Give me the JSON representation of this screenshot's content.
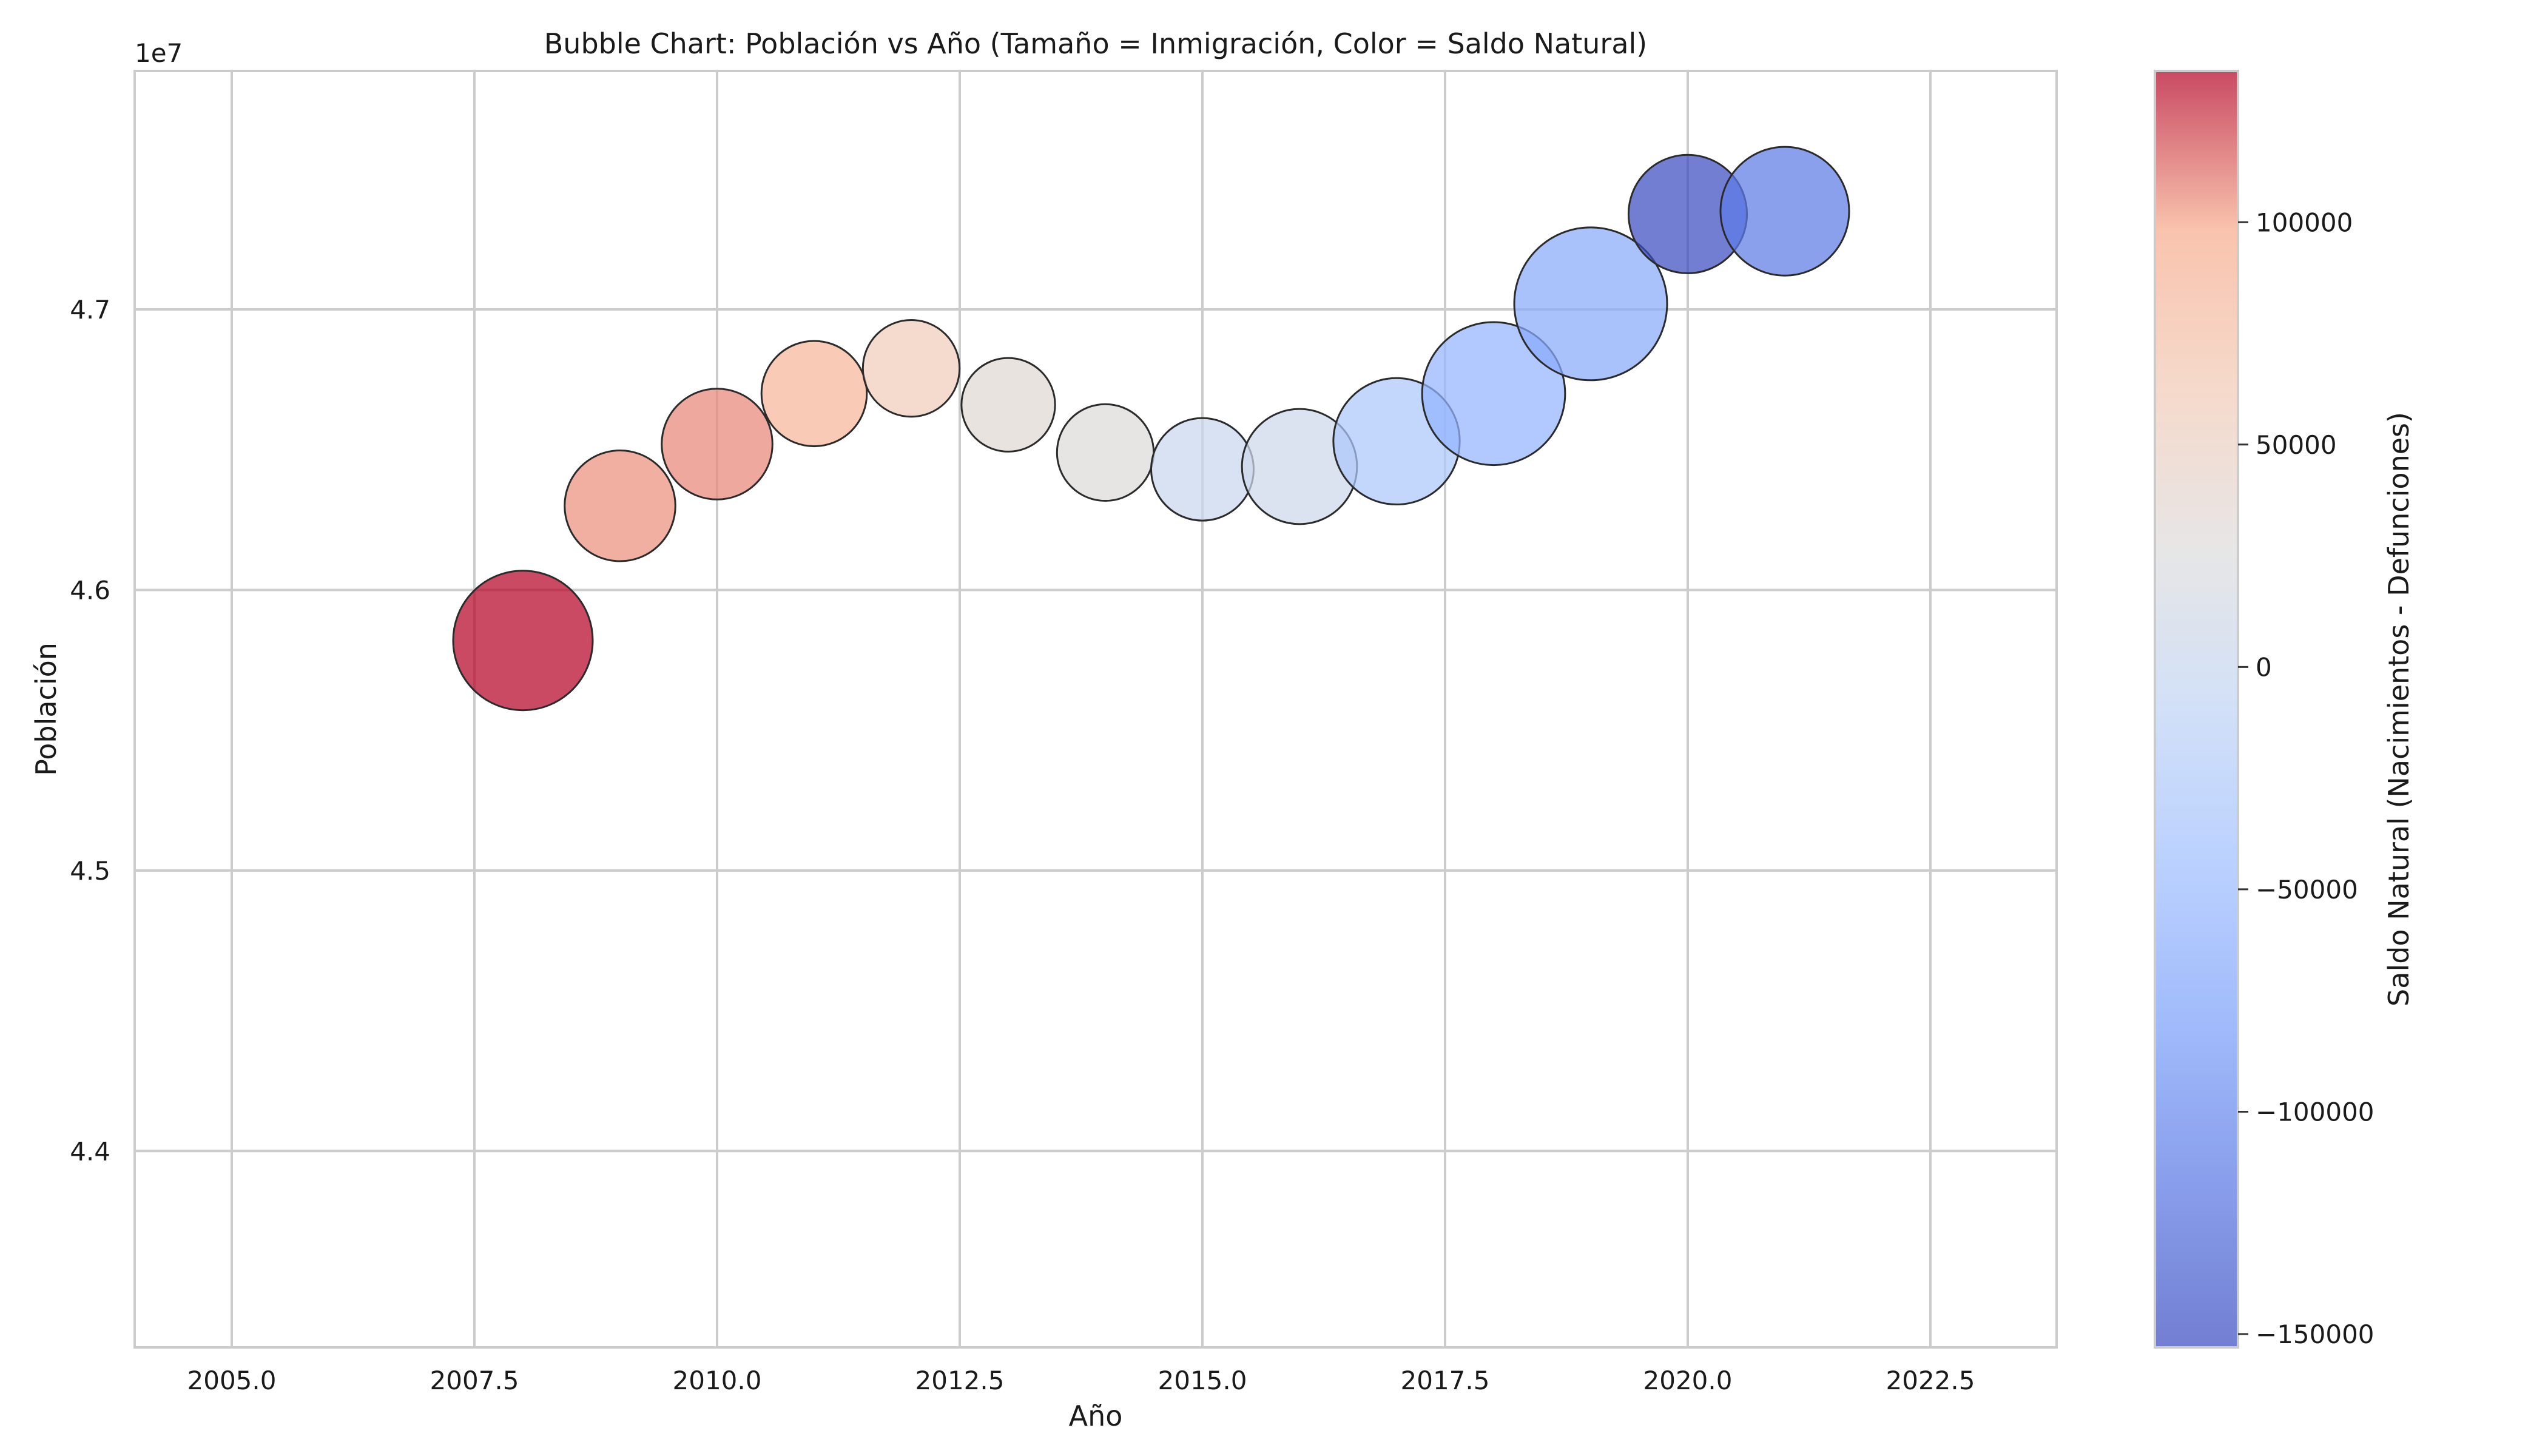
{
  "chart_data": {
    "type": "scatter",
    "title": "Bubble Chart: Población vs Año (Tamaño = Inmigración, Color = Saldo Natural)",
    "xlabel": "Año",
    "ylabel": "Población",
    "y_offset_label": "1e7",
    "xlim": [
      2004.0,
      2023.8
    ],
    "ylim": [
      43300000,
      47850000
    ],
    "x_ticks": [
      2005.0,
      2007.5,
      2010.0,
      2012.5,
      2015.0,
      2017.5,
      2020.0,
      2022.5
    ],
    "x_tick_labels": [
      "2005.0",
      "2007.5",
      "2010.0",
      "2012.5",
      "2015.0",
      "2017.5",
      "2020.0",
      "2022.5"
    ],
    "y_ticks": [
      44000000,
      45000000,
      46000000,
      47000000
    ],
    "y_tick_labels": [
      "4.4",
      "4.5",
      "4.6",
      "4.7"
    ],
    "grid": true,
    "colorbar": {
      "label": "Saldo Natural (Nacimientos - Defunciones)",
      "range": [
        -153000,
        134000
      ],
      "ticks": [
        -150000,
        -100000,
        -50000,
        0,
        50000,
        100000
      ],
      "tick_labels": [
        "−150000",
        "−100000",
        "−50000",
        "0",
        "50000",
        "100000"
      ],
      "colormap": "coolwarm"
    },
    "points": [
      {
        "x": 2008,
        "y": 45820000,
        "size": 1.0,
        "saldo": 134000
      },
      {
        "x": 2009,
        "y": 46300000,
        "size": 0.63,
        "saldo": 104000
      },
      {
        "x": 2010,
        "y": 46520000,
        "size": 0.63,
        "saldo": 106000
      },
      {
        "x": 2011,
        "y": 46700000,
        "size": 0.57,
        "saldo": 88000
      },
      {
        "x": 2012,
        "y": 46790000,
        "size": 0.48,
        "saldo": 59000
      },
      {
        "x": 2013,
        "y": 46660000,
        "size": 0.45,
        "saldo": 34000
      },
      {
        "x": 2014,
        "y": 46490000,
        "size": 0.48,
        "saldo": 28000
      },
      {
        "x": 2015,
        "y": 46430000,
        "size": 0.54,
        "saldo": 2000
      },
      {
        "x": 2016,
        "y": 46440000,
        "size": 0.68,
        "saldo": 7000
      },
      {
        "x": 2017,
        "y": 46530000,
        "size": 0.82,
        "saldo": -31000
      },
      {
        "x": 2018,
        "y": 46700000,
        "size": 1.05,
        "saldo": -57000
      },
      {
        "x": 2019,
        "y": 47020000,
        "size": 1.2,
        "saldo": -67000
      },
      {
        "x": 2020,
        "y": 47340000,
        "size": 0.72,
        "saldo": -153000
      },
      {
        "x": 2021,
        "y": 47350000,
        "size": 0.85,
        "saldo": -113000
      }
    ]
  }
}
